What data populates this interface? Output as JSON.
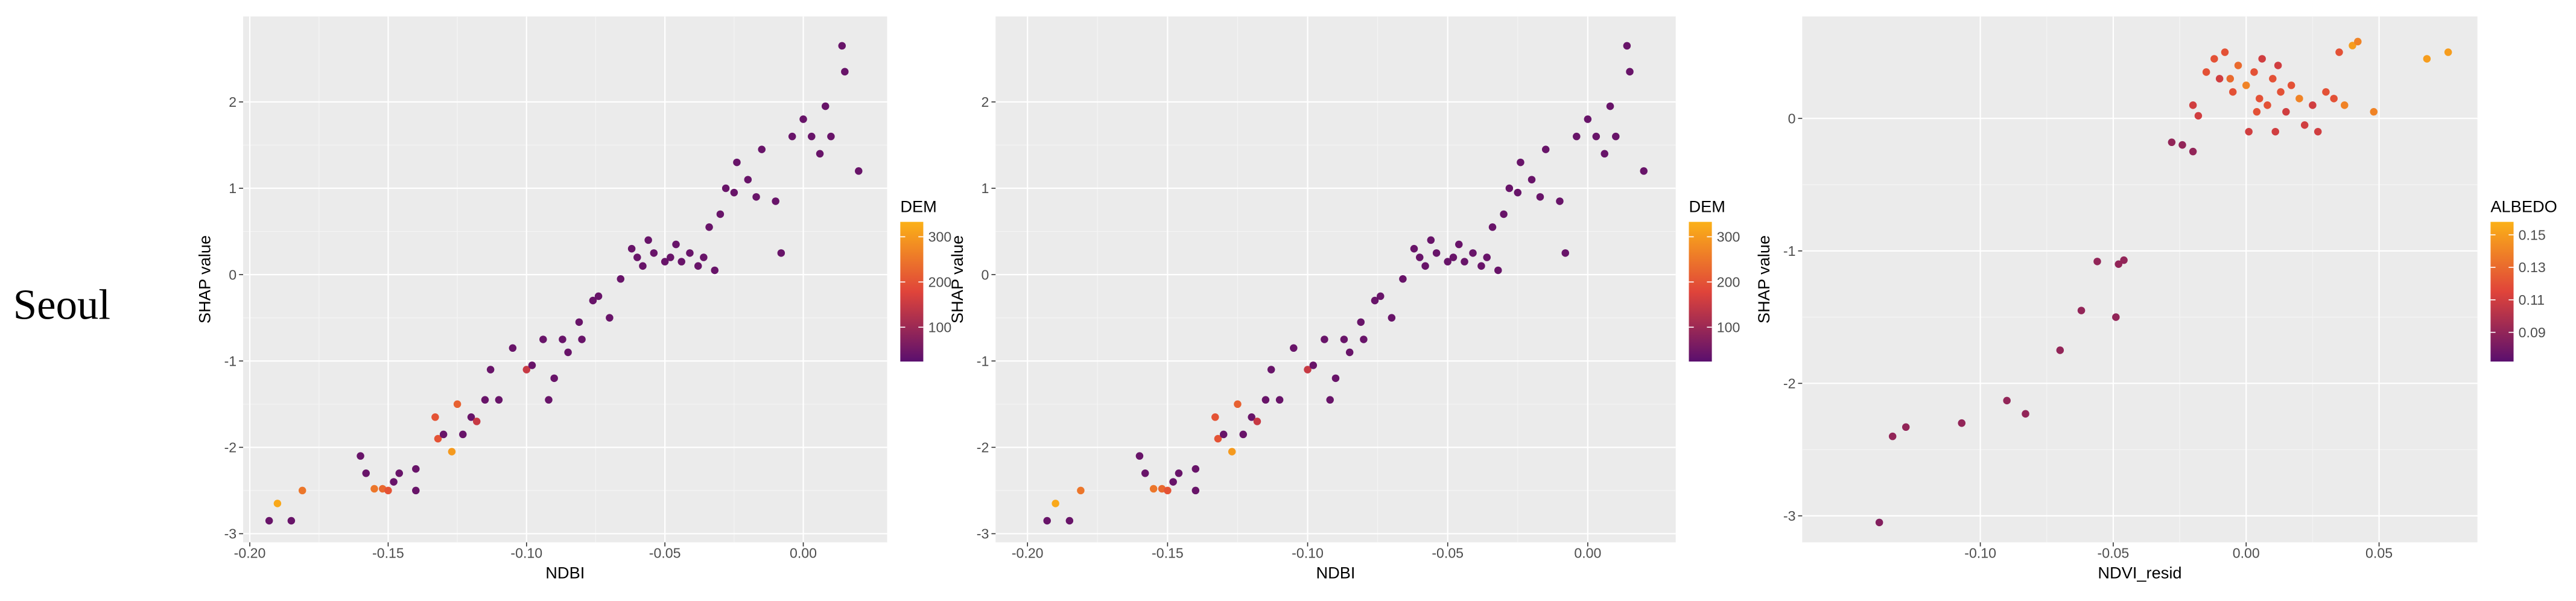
{
  "row_label": "Seoul",
  "chart_data": [
    {
      "type": "scatter",
      "x_label": "NDBI",
      "y_label": "SHAP value",
      "xlim": [
        -0.2024,
        0.0303
      ],
      "ylim": [
        -3.1,
        2.99
      ],
      "xticks": [
        {
          "value": -0.2,
          "label": "-0.20"
        },
        -0.15,
        {
          "value": -0.1,
          "label": "-0.10"
        },
        -0.05,
        {
          "value": 0,
          "label": "0.00"
        }
      ],
      "yticks": [
        -3,
        -2,
        -1,
        0,
        1,
        2
      ],
      "grid": true,
      "x": [
        -0.193,
        -0.19,
        -0.185,
        -0.181,
        -0.16,
        -0.158,
        -0.155,
        -0.152,
        -0.15,
        -0.148,
        -0.146,
        -0.14,
        -0.14,
        -0.133,
        -0.132,
        -0.13,
        -0.127,
        -0.125,
        -0.123,
        -0.12,
        -0.118,
        -0.115,
        -0.113,
        -0.11,
        -0.105,
        -0.1,
        -0.098,
        -0.094,
        -0.092,
        -0.09,
        -0.087,
        -0.085,
        -0.081,
        -0.08,
        -0.076,
        -0.074,
        -0.07,
        -0.066,
        -0.062,
        -0.06,
        -0.058,
        -0.056,
        -0.054,
        -0.05,
        -0.048,
        -0.046,
        -0.044,
        -0.041,
        -0.038,
        -0.036,
        -0.034,
        -0.032,
        -0.03,
        -0.028,
        -0.025,
        -0.024,
        -0.02,
        -0.017,
        -0.015,
        -0.01,
        -0.008,
        -0.004,
        0.0,
        0.003,
        0.006,
        0.008,
        0.01,
        0.014,
        0.015,
        0.02
      ],
      "values": [
        -2.85,
        -2.65,
        -2.85,
        -2.5,
        -2.1,
        -2.3,
        -2.48,
        -2.48,
        -2.5,
        -2.4,
        -2.3,
        -2.5,
        -2.25,
        -1.65,
        -1.9,
        -1.85,
        -2.05,
        -1.5,
        -1.85,
        -1.65,
        -1.7,
        -1.45,
        -1.1,
        -1.45,
        -0.85,
        -1.1,
        -1.05,
        -0.75,
        -1.45,
        -1.2,
        -0.75,
        -0.9,
        -0.55,
        -0.75,
        -0.3,
        -0.25,
        -0.5,
        -0.05,
        0.3,
        0.2,
        0.1,
        0.4,
        0.25,
        0.15,
        0.2,
        0.35,
        0.15,
        0.25,
        0.1,
        0.2,
        0.55,
        0.05,
        0.7,
        1.0,
        0.95,
        1.3,
        1.1,
        0.9,
        1.45,
        0.85,
        0.25,
        1.6,
        1.8,
        1.6,
        1.4,
        1.95,
        1.6,
        2.65,
        2.35,
        1.2
      ],
      "color_values": [
        40,
        320,
        40,
        250,
        40,
        40,
        250,
        230,
        200,
        40,
        40,
        40,
        40,
        200,
        200,
        40,
        300,
        220,
        40,
        40,
        150,
        40,
        40,
        40,
        40,
        150,
        40,
        40,
        40,
        40,
        40,
        40,
        40,
        40,
        40,
        40,
        40,
        40,
        40,
        40,
        40,
        40,
        40,
        40,
        40,
        40,
        40,
        40,
        40,
        40,
        40,
        40,
        40,
        40,
        40,
        40,
        40,
        40,
        40,
        40,
        40,
        40,
        40,
        40,
        40,
        40,
        40,
        40,
        40,
        40
      ],
      "colorbar": {
        "title": "DEM",
        "lim": [
          24,
          333
        ],
        "ticks": [
          100,
          200,
          300
        ],
        "colors": [
          "#5a0f6e",
          "#e0443a",
          "#fbb117"
        ]
      }
    },
    {
      "type": "scatter",
      "x_label": "NDBI",
      "y_label": "SHAP value",
      "xlim": [
        -0.2114,
        0.0314
      ],
      "ylim": [
        -3.1,
        2.99
      ],
      "xticks": [
        {
          "value": -0.2,
          "label": "-0.20"
        },
        -0.15,
        {
          "value": -0.1,
          "label": "-0.10"
        },
        -0.05,
        {
          "value": 0,
          "label": "0.00"
        }
      ],
      "yticks": [
        -3,
        -2,
        -1,
        0,
        1,
        2
      ],
      "grid": true,
      "x": [
        -0.193,
        -0.19,
        -0.185,
        -0.181,
        -0.16,
        -0.158,
        -0.155,
        -0.152,
        -0.15,
        -0.148,
        -0.146,
        -0.14,
        -0.14,
        -0.133,
        -0.132,
        -0.13,
        -0.127,
        -0.125,
        -0.123,
        -0.12,
        -0.118,
        -0.115,
        -0.113,
        -0.11,
        -0.105,
        -0.1,
        -0.098,
        -0.094,
        -0.092,
        -0.09,
        -0.087,
        -0.085,
        -0.081,
        -0.08,
        -0.076,
        -0.074,
        -0.07,
        -0.066,
        -0.062,
        -0.06,
        -0.058,
        -0.056,
        -0.054,
        -0.05,
        -0.048,
        -0.046,
        -0.044,
        -0.041,
        -0.038,
        -0.036,
        -0.034,
        -0.032,
        -0.03,
        -0.028,
        -0.025,
        -0.024,
        -0.02,
        -0.017,
        -0.015,
        -0.01,
        -0.008,
        -0.004,
        0.0,
        0.003,
        0.006,
        0.008,
        0.01,
        0.014,
        0.015,
        0.02
      ],
      "values": [
        -2.85,
        -2.65,
        -2.85,
        -2.5,
        -2.1,
        -2.3,
        -2.48,
        -2.48,
        -2.5,
        -2.4,
        -2.3,
        -2.5,
        -2.25,
        -1.65,
        -1.9,
        -1.85,
        -2.05,
        -1.5,
        -1.85,
        -1.65,
        -1.7,
        -1.45,
        -1.1,
        -1.45,
        -0.85,
        -1.1,
        -1.05,
        -0.75,
        -1.45,
        -1.2,
        -0.75,
        -0.9,
        -0.55,
        -0.75,
        -0.3,
        -0.25,
        -0.5,
        -0.05,
        0.3,
        0.2,
        0.1,
        0.4,
        0.25,
        0.15,
        0.2,
        0.35,
        0.15,
        0.25,
        0.1,
        0.2,
        0.55,
        0.05,
        0.7,
        1.0,
        0.95,
        1.3,
        1.1,
        0.9,
        1.45,
        0.85,
        0.25,
        1.6,
        1.8,
        1.6,
        1.4,
        1.95,
        1.6,
        2.65,
        2.35,
        1.2
      ],
      "color_values": [
        40,
        320,
        40,
        250,
        40,
        40,
        250,
        230,
        200,
        40,
        40,
        40,
        40,
        200,
        200,
        40,
        300,
        220,
        40,
        40,
        150,
        40,
        40,
        40,
        40,
        150,
        40,
        40,
        40,
        40,
        40,
        40,
        40,
        40,
        40,
        40,
        40,
        40,
        40,
        40,
        40,
        40,
        40,
        40,
        40,
        40,
        40,
        40,
        40,
        40,
        40,
        40,
        40,
        40,
        40,
        40,
        40,
        40,
        40,
        40,
        40,
        40,
        40,
        40,
        40,
        40,
        40,
        40,
        40,
        40
      ],
      "colorbar": {
        "title": "DEM",
        "lim": [
          24,
          333
        ],
        "ticks": [
          100,
          200,
          300
        ],
        "colors": [
          "#5a0f6e",
          "#e0443a",
          "#fbb117"
        ]
      }
    },
    {
      "type": "scatter",
      "x_label": "NDVI_resid",
      "y_label": "SHAP value",
      "xlim": [
        -0.167,
        0.087
      ],
      "ylim": [
        -3.2,
        0.77
      ],
      "xticks": [
        {
          "value": -0.1,
          "label": "-0.10"
        },
        -0.05,
        {
          "value": 0,
          "label": "0.00"
        },
        0.05
      ],
      "yticks": [
        -3,
        -2,
        -1,
        0
      ],
      "grid": true,
      "x": [
        -0.138,
        -0.133,
        -0.128,
        -0.107,
        -0.09,
        -0.083,
        -0.07,
        -0.062,
        -0.056,
        -0.049,
        -0.048,
        -0.046,
        -0.028,
        -0.024,
        -0.02,
        -0.018,
        -0.015,
        -0.012,
        -0.01,
        -0.008,
        -0.005,
        -0.003,
        0.0,
        0.001,
        0.003,
        0.005,
        0.006,
        0.008,
        0.01,
        0.011,
        0.013,
        0.015,
        0.017,
        0.02,
        0.022,
        0.025,
        0.027,
        0.03,
        0.033,
        0.035,
        0.037,
        0.04,
        0.042,
        0.048,
        0.068,
        0.076,
        -0.02,
        0.004,
        0.012,
        -0.006
      ],
      "values": [
        -3.05,
        -2.4,
        -2.33,
        -2.3,
        -2.13,
        -2.23,
        -1.75,
        -1.45,
        -1.08,
        -1.5,
        -1.1,
        -1.07,
        -0.18,
        -0.2,
        -0.25,
        0.02,
        0.35,
        0.45,
        0.3,
        0.5,
        0.2,
        0.4,
        0.25,
        -0.1,
        0.35,
        0.15,
        0.45,
        0.1,
        0.3,
        -0.1,
        0.2,
        0.05,
        0.25,
        0.15,
        -0.05,
        0.1,
        -0.1,
        0.2,
        0.15,
        0.5,
        0.1,
        0.55,
        0.58,
        0.05,
        0.45,
        0.5,
        0.1,
        0.05,
        0.4,
        0.3
      ],
      "color_values": [
        0.085,
        0.09,
        0.09,
        0.09,
        0.09,
        0.09,
        0.09,
        0.09,
        0.09,
        0.09,
        0.09,
        0.09,
        0.09,
        0.09,
        0.09,
        0.11,
        0.12,
        0.12,
        0.11,
        0.12,
        0.12,
        0.13,
        0.14,
        0.11,
        0.12,
        0.12,
        0.11,
        0.12,
        0.12,
        0.11,
        0.12,
        0.11,
        0.12,
        0.14,
        0.11,
        0.11,
        0.11,
        0.12,
        0.12,
        0.12,
        0.14,
        0.15,
        0.14,
        0.14,
        0.15,
        0.15,
        0.11,
        0.12,
        0.11,
        0.13
      ],
      "colorbar": {
        "title": "ALBEDO",
        "lim": [
          0.072,
          0.158
        ],
        "ticks": [
          0.09,
          0.11,
          0.13,
          0.15
        ],
        "colors": [
          "#5a0f6e",
          "#e0443a",
          "#fbb117"
        ]
      }
    }
  ]
}
